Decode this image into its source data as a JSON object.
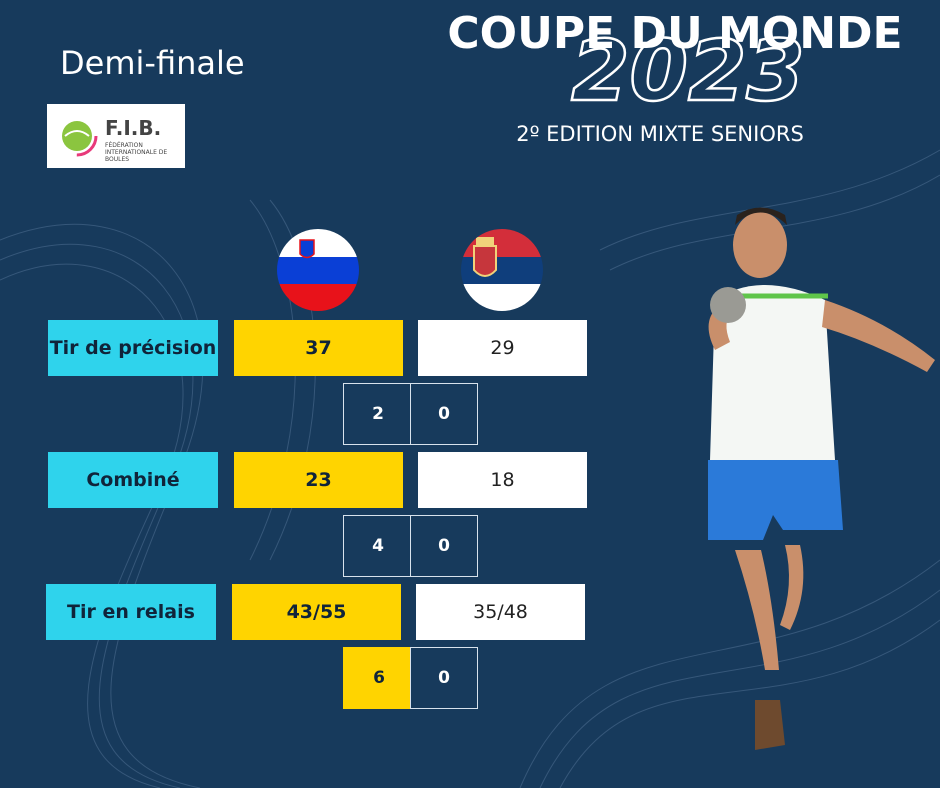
{
  "header": {
    "subtitle": "Demi-finale",
    "title": "COUPE DU MONDE",
    "year": "2023",
    "edition": "2º EDITION MIXTE SENIORS"
  },
  "logo": {
    "acronym": "F.I.B.",
    "name": "FÉDÉRATION INTERNATIONALE DE BOULES"
  },
  "rows": [
    {
      "label": "Tir de précision",
      "home": "37",
      "away": "29",
      "home_points": "2",
      "away_points": "0"
    },
    {
      "label": "Combiné",
      "home": "23",
      "away": "18",
      "home_points": "4",
      "away_points": "0"
    },
    {
      "label": "Tir en relais",
      "home": "43/55",
      "away": "35/48",
      "home_points": "6",
      "away_points": "0"
    }
  ]
}
